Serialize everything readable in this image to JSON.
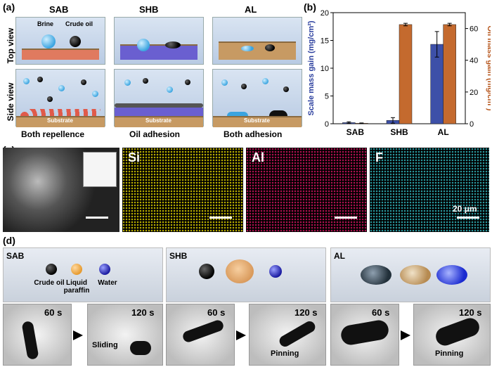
{
  "panel_a": {
    "label": "(a)",
    "columns": [
      "SAB",
      "SHB",
      "AL"
    ],
    "row_labels": [
      "Top view",
      "Side view"
    ],
    "captions": [
      "Both repellence",
      "Oil adhesion",
      "Both adhesion"
    ],
    "drop_labels": {
      "brine": "Brine",
      "crude_oil": "Crude oil"
    },
    "substrate": "Substrate"
  },
  "panel_b": {
    "label": "(b)"
  },
  "panel_c": {
    "label": "(c)",
    "elements": [
      "Si",
      "Al",
      "F"
    ],
    "scale_text": "20 μm"
  },
  "panel_d": {
    "label": "(d)",
    "groups": [
      {
        "name": "SAB",
        "t1": "60 s",
        "t2": "120 s",
        "action": "Sliding"
      },
      {
        "name": "SHB",
        "t1": "60 s",
        "t2": "120 s",
        "action": "Pinning"
      },
      {
        "name": "AL",
        "t1": "60 s",
        "t2": "120 s",
        "action": "Pinning"
      }
    ],
    "liquid_labels": [
      "Crude oil",
      "Liquid paraffin",
      "Water"
    ]
  },
  "chart_data": {
    "type": "bar",
    "categories": [
      "SAB",
      "SHB",
      "AL"
    ],
    "series": [
      {
        "name": "Scale mass gain",
        "axis": "left",
        "color": "#3d50a8",
        "values": [
          0.2,
          0.6,
          14.3
        ],
        "errors": [
          0.15,
          0.5,
          2.3
        ]
      },
      {
        "name": "Oil mass gain",
        "axis": "right",
        "color": "#c46a2e",
        "values": [
          0.3,
          62.5,
          62.5
        ],
        "errors": [
          0.2,
          0.8,
          0.8
        ]
      }
    ],
    "ylabel": "Scale mass gain (mg/cm²)",
    "y2label": "Oil mass gain (mg/cm²)",
    "ylim": [
      0,
      20
    ],
    "y2lim": [
      0,
      70
    ],
    "yticks": [
      0,
      5,
      10,
      15,
      20
    ],
    "y2ticks": [
      0,
      20,
      40,
      60
    ],
    "grid": false
  },
  "colors": {
    "left_axis": "#2b3f9e",
    "right_axis": "#b5541a"
  }
}
